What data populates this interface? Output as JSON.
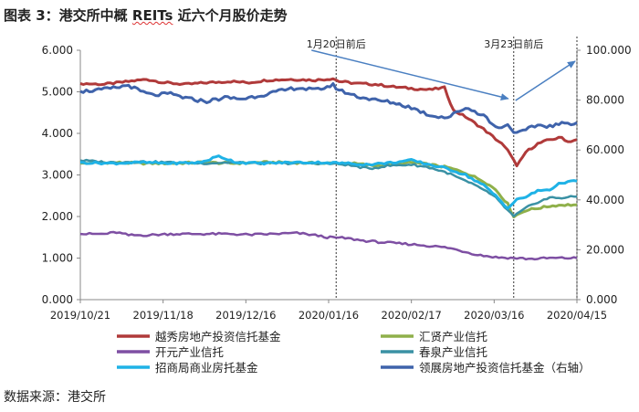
{
  "title_prefix": "图表 3：港交所中概 ",
  "title_reits": "REITs",
  "title_suffix": " 近六个月股价走势",
  "source": "数据来源：港交所",
  "chart_data": {
    "type": "line",
    "title": "图表 3：港交所中概 REITs 近六个月股价走势",
    "x_range": [
      "2019/10/21",
      "2020/04/15"
    ],
    "x_tick_labels": [
      "2019/10/21",
      "2019/11/18",
      "2019/12/16",
      "2020/01/16",
      "2020/02/17",
      "2020/03/16",
      "2020/04/15"
    ],
    "ylim_left": [
      0,
      6
    ],
    "yticks_left": [
      "0.000",
      "1.000",
      "2.000",
      "3.000",
      "4.000",
      "5.000",
      "6.000"
    ],
    "ylim_right": [
      0,
      100
    ],
    "yticks_right": [
      "0.000",
      "20.000",
      "40.000",
      "60.000",
      "80.000",
      "100.000"
    ],
    "annotations": [
      {
        "label": "1月20日前后",
        "date_index": 85
      },
      {
        "label": "3月23日前后",
        "date_index": 144
      }
    ],
    "legend_position": "bottom",
    "series": [
      {
        "name": "越秀房地产投资信托基金",
        "axis": "left",
        "color": "#b03a3a",
        "width": 3,
        "points": [
          [
            0,
            5.2
          ],
          [
            8,
            5.18
          ],
          [
            16,
            5.25
          ],
          [
            22,
            5.3
          ],
          [
            28,
            5.22
          ],
          [
            35,
            5.18
          ],
          [
            42,
            5.22
          ],
          [
            50,
            5.25
          ],
          [
            56,
            5.22
          ],
          [
            62,
            5.28
          ],
          [
            70,
            5.3
          ],
          [
            78,
            5.28
          ],
          [
            84,
            5.32
          ],
          [
            86,
            5.25
          ],
          [
            92,
            5.2
          ],
          [
            98,
            5.18
          ],
          [
            104,
            5.12
          ],
          [
            110,
            5.08
          ],
          [
            116,
            5.05
          ],
          [
            121,
            5.1
          ],
          [
            124,
            4.55
          ],
          [
            128,
            4.4
          ],
          [
            134,
            4.1
          ],
          [
            140,
            3.75
          ],
          [
            143,
            3.5
          ],
          [
            145,
            3.2
          ],
          [
            148,
            3.55
          ],
          [
            152,
            3.75
          ],
          [
            156,
            3.85
          ],
          [
            160,
            3.9
          ],
          [
            162,
            3.8
          ],
          [
            165,
            3.85
          ]
        ]
      },
      {
        "name": "汇贤产业信托",
        "axis": "left",
        "color": "#8fb04a",
        "width": 3,
        "points": [
          [
            0,
            3.28
          ],
          [
            10,
            3.3
          ],
          [
            20,
            3.28
          ],
          [
            30,
            3.28
          ],
          [
            40,
            3.3
          ],
          [
            50,
            3.28
          ],
          [
            60,
            3.3
          ],
          [
            70,
            3.3
          ],
          [
            80,
            3.28
          ],
          [
            90,
            3.28
          ],
          [
            98,
            3.22
          ],
          [
            104,
            3.25
          ],
          [
            110,
            3.3
          ],
          [
            116,
            3.25
          ],
          [
            122,
            3.18
          ],
          [
            128,
            3.05
          ],
          [
            134,
            2.85
          ],
          [
            138,
            2.65
          ],
          [
            142,
            2.3
          ],
          [
            144,
            2.0
          ],
          [
            148,
            2.15
          ],
          [
            152,
            2.2
          ],
          [
            156,
            2.25
          ],
          [
            160,
            2.28
          ],
          [
            165,
            2.28
          ]
        ]
      },
      {
        "name": "开元产业信托",
        "axis": "left",
        "color": "#7e4fa3",
        "width": 2.5,
        "points": [
          [
            0,
            1.58
          ],
          [
            8,
            1.58
          ],
          [
            12,
            1.62
          ],
          [
            16,
            1.55
          ],
          [
            22,
            1.55
          ],
          [
            30,
            1.58
          ],
          [
            40,
            1.58
          ],
          [
            50,
            1.58
          ],
          [
            56,
            1.56
          ],
          [
            64,
            1.58
          ],
          [
            72,
            1.6
          ],
          [
            78,
            1.55
          ],
          [
            82,
            1.5
          ],
          [
            88,
            1.48
          ],
          [
            94,
            1.42
          ],
          [
            100,
            1.38
          ],
          [
            106,
            1.35
          ],
          [
            112,
            1.32
          ],
          [
            118,
            1.28
          ],
          [
            122,
            1.25
          ],
          [
            128,
            1.15
          ],
          [
            132,
            1.08
          ],
          [
            138,
            1.02
          ],
          [
            144,
            1.0
          ],
          [
            150,
            0.98
          ],
          [
            156,
            1.0
          ],
          [
            160,
            1.0
          ],
          [
            165,
            1.0
          ]
        ]
      },
      {
        "name": "春泉产业信托",
        "axis": "left",
        "color": "#3a91a4",
        "width": 2.5,
        "points": [
          [
            0,
            3.35
          ],
          [
            10,
            3.3
          ],
          [
            20,
            3.32
          ],
          [
            30,
            3.3
          ],
          [
            40,
            3.28
          ],
          [
            50,
            3.3
          ],
          [
            60,
            3.28
          ],
          [
            70,
            3.28
          ],
          [
            80,
            3.28
          ],
          [
            88,
            3.25
          ],
          [
            96,
            3.15
          ],
          [
            102,
            3.22
          ],
          [
            110,
            3.25
          ],
          [
            116,
            3.18
          ],
          [
            122,
            3.05
          ],
          [
            128,
            2.85
          ],
          [
            134,
            2.65
          ],
          [
            138,
            2.45
          ],
          [
            142,
            2.15
          ],
          [
            144,
            2.0
          ],
          [
            148,
            2.2
          ],
          [
            152,
            2.35
          ],
          [
            156,
            2.45
          ],
          [
            160,
            2.45
          ],
          [
            165,
            2.48
          ]
        ]
      },
      {
        "name": "招商局商业房托基金",
        "axis": "left",
        "color": "#1fb2e6",
        "width": 3,
        "points": [
          [
            0,
            3.3
          ],
          [
            10,
            3.28
          ],
          [
            20,
            3.3
          ],
          [
            30,
            3.28
          ],
          [
            40,
            3.3
          ],
          [
            46,
            3.45
          ],
          [
            52,
            3.3
          ],
          [
            60,
            3.28
          ],
          [
            70,
            3.3
          ],
          [
            80,
            3.3
          ],
          [
            88,
            3.28
          ],
          [
            96,
            3.25
          ],
          [
            104,
            3.3
          ],
          [
            110,
            3.35
          ],
          [
            116,
            3.25
          ],
          [
            122,
            3.15
          ],
          [
            128,
            3.0
          ],
          [
            134,
            2.75
          ],
          [
            138,
            2.5
          ],
          [
            142,
            2.2
          ],
          [
            145,
            2.4
          ],
          [
            149,
            2.5
          ],
          [
            152,
            2.62
          ],
          [
            156,
            2.65
          ],
          [
            160,
            2.82
          ],
          [
            165,
            2.85
          ]
        ]
      },
      {
        "name": "领展房地产投资信托基金（右轴）",
        "axis": "right",
        "color": "#3f63ab",
        "width": 3,
        "points": [
          [
            0,
            83.5
          ],
          [
            6,
            84
          ],
          [
            12,
            85
          ],
          [
            16,
            86
          ],
          [
            20,
            83.5
          ],
          [
            24,
            82
          ],
          [
            30,
            82.5
          ],
          [
            36,
            80.5
          ],
          [
            42,
            79.5
          ],
          [
            48,
            81
          ],
          [
            54,
            80.5
          ],
          [
            60,
            82
          ],
          [
            66,
            83.5
          ],
          [
            72,
            85
          ],
          [
            78,
            84
          ],
          [
            84,
            86
          ],
          [
            86,
            84
          ],
          [
            92,
            81.5
          ],
          [
            98,
            80
          ],
          [
            104,
            79
          ],
          [
            110,
            77
          ],
          [
            116,
            74
          ],
          [
            122,
            73
          ],
          [
            128,
            77
          ],
          [
            134,
            74
          ],
          [
            138,
            69
          ],
          [
            142,
            70
          ],
          [
            145,
            66.5
          ],
          [
            148,
            68
          ],
          [
            152,
            70
          ],
          [
            156,
            69.5
          ],
          [
            160,
            70.5
          ],
          [
            165,
            71
          ]
        ]
      }
    ]
  }
}
